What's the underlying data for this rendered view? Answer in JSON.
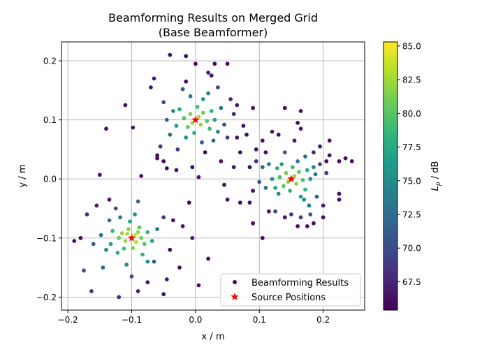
{
  "chart_data": {
    "type": "scatter",
    "title": "Beamforming Results on Merged Grid\n(Base Beamformer)",
    "xlabel": "x / m",
    "ylabel": "y / m",
    "xlim": [
      -0.21,
      0.265
    ],
    "ylim": [
      -0.222,
      0.232
    ],
    "xticks": [
      -0.2,
      -0.1,
      0.0,
      0.1,
      0.2
    ],
    "xtick_labels": [
      "−0.2",
      "−0.1",
      "0.0",
      "0.1",
      "0.2"
    ],
    "yticks": [
      -0.2,
      -0.1,
      0.0,
      0.1,
      0.2
    ],
    "ytick_labels": [
      "−0.2",
      "−0.1",
      "0.0",
      "0.1",
      "0.2"
    ],
    "grid": true,
    "legend": {
      "placement": "lower right",
      "entries": [
        "Beamforming Results",
        "Source Positions"
      ]
    },
    "colorbar": {
      "label": "L_p / dB",
      "label_main": "L",
      "label_sub": "p",
      "label_suffix": " / dB",
      "min": 65.4,
      "max": 85.3,
      "colormap": "viridis",
      "ticks": [
        67.5,
        70.0,
        72.5,
        75.0,
        77.5,
        80.0,
        82.5,
        85.0
      ],
      "tick_labels": [
        "67.5",
        "70.0",
        "72.5",
        "75.0",
        "77.5",
        "80.0",
        "82.5",
        "85.0"
      ]
    },
    "sources": {
      "name": "Source Positions",
      "color": "#ff0000",
      "marker": "star",
      "x": [
        -0.1,
        0.0,
        0.15
      ],
      "y": [
        -0.1,
        0.1,
        0.0
      ]
    },
    "series": [
      {
        "name": "Beamforming Results",
        "marker": "circle",
        "points": [
          [
            -0.1,
            -0.1,
            84.5
          ],
          [
            -0.095,
            -0.095,
            83.5
          ],
          [
            -0.107,
            -0.093,
            83.0
          ],
          [
            -0.093,
            -0.107,
            83.2
          ],
          [
            -0.11,
            -0.105,
            82.5
          ],
          [
            -0.09,
            -0.09,
            82.0
          ],
          [
            -0.105,
            -0.085,
            81.5
          ],
          [
            -0.085,
            -0.1,
            81.0
          ],
          [
            -0.115,
            -0.092,
            81.8
          ],
          [
            -0.098,
            -0.117,
            81.5
          ],
          [
            -0.12,
            -0.1,
            80.5
          ],
          [
            -0.08,
            -0.11,
            80.0
          ],
          [
            -0.112,
            -0.118,
            79.5
          ],
          [
            -0.088,
            -0.082,
            80.2
          ],
          [
            -0.13,
            -0.088,
            79.0
          ],
          [
            -0.075,
            -0.09,
            78.5
          ],
          [
            -0.103,
            -0.072,
            78.0
          ],
          [
            -0.122,
            -0.125,
            77.8
          ],
          [
            -0.083,
            -0.128,
            78.2
          ],
          [
            -0.133,
            -0.11,
            77.2
          ],
          [
            -0.068,
            -0.105,
            77.0
          ],
          [
            -0.095,
            -0.06,
            75.5
          ],
          [
            -0.14,
            -0.12,
            75.2
          ],
          [
            -0.075,
            -0.14,
            76.0
          ],
          [
            -0.118,
            -0.065,
            74.2
          ],
          [
            -0.06,
            -0.085,
            73.5
          ],
          [
            -0.148,
            -0.095,
            73.0
          ],
          [
            -0.108,
            -0.145,
            74.5
          ],
          [
            -0.135,
            -0.07,
            72.8
          ],
          [
            -0.09,
            -0.038,
            71.5
          ],
          [
            -0.16,
            -0.11,
            71.0
          ],
          [
            -0.145,
            -0.15,
            72.0
          ],
          [
            -0.1,
            -0.165,
            70.0
          ],
          [
            -0.065,
            -0.14,
            70.5
          ],
          [
            -0.125,
            -0.05,
            69.5
          ],
          [
            -0.05,
            -0.065,
            69.0
          ],
          [
            -0.17,
            -0.06,
            68.0
          ],
          [
            -0.175,
            -0.155,
            69.8
          ],
          [
            -0.163,
            -0.19,
            68.5
          ],
          [
            -0.12,
            -0.2,
            67.8
          ],
          [
            -0.155,
            -0.045,
            67.0
          ],
          [
            -0.135,
            -0.035,
            66.5
          ],
          [
            -0.09,
            -0.19,
            67.2
          ],
          [
            -0.045,
            -0.17,
            66.8
          ],
          [
            -0.04,
            -0.12,
            66.0
          ],
          [
            -0.05,
            -0.195,
            66.2
          ],
          [
            -0.02,
            -0.08,
            66.5
          ],
          [
            -0.025,
            -0.15,
            66.0
          ],
          [
            -0.005,
            -0.1,
            67.0
          ],
          [
            0.005,
            -0.18,
            66.3
          ],
          [
            0.02,
            -0.135,
            66.0
          ],
          [
            -0.14,
            0.085,
            66.2
          ],
          [
            -0.11,
            0.125,
            66.0
          ],
          [
            -0.098,
            0.087,
            66.4
          ],
          [
            -0.06,
            0.035,
            66.1
          ],
          [
            -0.085,
            0.005,
            66.3
          ],
          [
            -0.045,
            0.018,
            65.9
          ],
          [
            -0.19,
            -0.105,
            66.5
          ],
          [
            -0.18,
            -0.1,
            66.2
          ],
          [
            -0.15,
            0.007,
            66.7
          ],
          [
            -0.035,
            -0.07,
            66.4
          ],
          [
            -0.01,
            -0.04,
            66.1
          ],
          [
            -0.075,
            -0.175,
            66.6
          ],
          [
            0.0,
            0.1,
            84.0
          ],
          [
            0.005,
            0.105,
            83.0
          ],
          [
            -0.005,
            0.095,
            82.7
          ],
          [
            0.008,
            0.092,
            82.0
          ],
          [
            -0.008,
            0.11,
            81.5
          ],
          [
            0.012,
            0.112,
            80.8
          ],
          [
            -0.012,
            0.088,
            80.5
          ],
          [
            0.018,
            0.098,
            80.0
          ],
          [
            -0.018,
            0.103,
            79.6
          ],
          [
            0.003,
            0.122,
            79.0
          ],
          [
            0.022,
            0.085,
            78.8
          ],
          [
            -0.002,
            0.078,
            78.3
          ],
          [
            0.025,
            0.115,
            78.0
          ],
          [
            -0.025,
            0.118,
            77.5
          ],
          [
            0.03,
            0.1,
            77.0
          ],
          [
            -0.03,
            0.09,
            76.8
          ],
          [
            0.012,
            0.135,
            76.2
          ],
          [
            -0.015,
            0.07,
            75.8
          ],
          [
            0.035,
            0.08,
            75.0
          ],
          [
            -0.035,
            0.115,
            74.5
          ],
          [
            0.02,
            0.145,
            74.0
          ],
          [
            -0.008,
            0.14,
            73.5
          ],
          [
            0.04,
            0.12,
            73.0
          ],
          [
            -0.04,
            0.075,
            72.6
          ],
          [
            0.028,
            0.065,
            72.0
          ],
          [
            -0.045,
            0.1,
            71.5
          ],
          [
            0.01,
            0.062,
            71.2
          ],
          [
            -0.02,
            0.152,
            71.0
          ],
          [
            0.045,
            0.092,
            70.5
          ],
          [
            -0.05,
            0.13,
            70.0
          ],
          [
            0.035,
            0.155,
            69.5
          ],
          [
            -0.028,
            0.05,
            69.2
          ],
          [
            0.05,
            0.07,
            68.8
          ],
          [
            -0.055,
            0.055,
            68.5
          ],
          [
            0.06,
            0.11,
            68.0
          ],
          [
            0.055,
            0.135,
            67.5
          ],
          [
            -0.065,
            0.17,
            67.0
          ],
          [
            0.02,
            0.18,
            66.8
          ],
          [
            -0.04,
            0.21,
            66.3
          ],
          [
            -0.015,
            0.208,
            66.0
          ],
          [
            0.025,
            0.175,
            66.5
          ],
          [
            -0.06,
            0.04,
            66.2
          ],
          [
            0.05,
            0.195,
            66.1
          ],
          [
            0.065,
            0.125,
            66.7
          ],
          [
            0.075,
            0.09,
            66.3
          ],
          [
            0.08,
            0.075,
            66.0
          ],
          [
            0.07,
            0.045,
            66.4
          ],
          [
            0.095,
            0.05,
            66.1
          ],
          [
            0.06,
            0.02,
            66.6
          ],
          [
            0.04,
            0.03,
            66.2
          ],
          [
            0.015,
            0.045,
            66.0
          ],
          [
            -0.005,
            0.02,
            65.9
          ],
          [
            -0.03,
            0.015,
            66.3
          ],
          [
            -0.05,
            0.03,
            66.1
          ],
          [
            0.005,
            0.003,
            66.5
          ],
          [
            0.045,
            -0.01,
            66.2
          ],
          [
            0.085,
            0.02,
            66.0
          ],
          [
            -0.07,
            0.155,
            66.4
          ],
          [
            -0.015,
            0.165,
            66.2
          ],
          [
            0.0,
            0.195,
            66.0
          ],
          [
            0.09,
            0.12,
            66.3
          ],
          [
            0.065,
            0.07,
            66.5
          ],
          [
            0.03,
            0.195,
            66.1
          ],
          [
            0.15,
            0.0,
            83.5
          ],
          [
            0.155,
            0.005,
            82.5
          ],
          [
            0.145,
            -0.005,
            82.0
          ],
          [
            0.158,
            -0.008,
            81.5
          ],
          [
            0.142,
            0.01,
            81.2
          ],
          [
            0.162,
            0.012,
            80.5
          ],
          [
            0.138,
            -0.012,
            80.2
          ],
          [
            0.168,
            -0.002,
            79.8
          ],
          [
            0.132,
            0.003,
            79.5
          ],
          [
            0.152,
            0.02,
            79.0
          ],
          [
            0.148,
            -0.02,
            78.8
          ],
          [
            0.172,
            -0.018,
            78.3
          ],
          [
            0.128,
            0.018,
            78.0
          ],
          [
            0.175,
            0.015,
            77.6
          ],
          [
            0.125,
            -0.015,
            77.2
          ],
          [
            0.165,
            -0.03,
            76.8
          ],
          [
            0.135,
            0.025,
            76.5
          ],
          [
            0.18,
            0.0,
            76.0
          ],
          [
            0.12,
            0.0,
            75.8
          ],
          [
            0.17,
            -0.035,
            75.3
          ],
          [
            0.13,
            -0.025,
            75.0
          ],
          [
            0.185,
            0.02,
            74.6
          ],
          [
            0.115,
            0.025,
            74.2
          ],
          [
            0.178,
            -0.045,
            74.0
          ],
          [
            0.16,
            0.03,
            73.6
          ],
          [
            0.188,
            0.008,
            73.2
          ],
          [
            0.11,
            -0.015,
            72.8
          ],
          [
            0.172,
            0.038,
            72.5
          ],
          [
            0.105,
            0.02,
            72.0
          ],
          [
            0.19,
            -0.03,
            71.6
          ],
          [
            0.14,
            0.045,
            71.2
          ],
          [
            0.18,
            -0.06,
            70.8
          ],
          [
            0.1,
            -0.005,
            70.5
          ],
          [
            0.195,
            0.025,
            70.0
          ],
          [
            0.125,
            -0.055,
            69.6
          ],
          [
            0.165,
            -0.065,
            69.2
          ],
          [
            0.15,
            -0.06,
            68.8
          ],
          [
            0.205,
            0.01,
            68.4
          ],
          [
            0.095,
            0.03,
            68.0
          ],
          [
            0.185,
            0.045,
            67.6
          ],
          [
            0.2,
            -0.045,
            67.2
          ],
          [
            0.155,
            0.065,
            67.0
          ],
          [
            0.12,
            0.08,
            66.8
          ],
          [
            0.165,
            0.085,
            66.5
          ],
          [
            0.21,
            0.04,
            66.2
          ],
          [
            0.225,
            0.03,
            66.0
          ],
          [
            0.235,
            0.035,
            66.3
          ],
          [
            0.245,
            0.03,
            66.1
          ],
          [
            0.225,
            -0.025,
            66.4
          ],
          [
            0.225,
            -0.035,
            66.2
          ],
          [
            0.21,
            0.065,
            66.0
          ],
          [
            0.175,
            -0.08,
            66.3
          ],
          [
            0.16,
            -0.08,
            66.1
          ],
          [
            0.14,
            -0.065,
            66.5
          ],
          [
            0.115,
            -0.055,
            66.2
          ],
          [
            0.09,
            -0.02,
            66.0
          ],
          [
            0.085,
            -0.04,
            66.4
          ],
          [
            0.07,
            -0.04,
            66.1
          ],
          [
            0.05,
            -0.035,
            66.3
          ],
          [
            0.09,
            -0.075,
            66.0
          ],
          [
            0.195,
            0.055,
            66.6
          ],
          [
            0.2,
            -0.065,
            66.2
          ],
          [
            0.185,
            -0.075,
            66.0
          ],
          [
            0.105,
            0.065,
            66.4
          ],
          [
            0.205,
            0.03,
            66.1
          ],
          [
            0.11,
            0.045,
            66.3
          ],
          [
            0.13,
            0.075,
            66.0
          ],
          [
            0.16,
            0.095,
            66.2
          ],
          [
            0.14,
            0.12,
            66.1
          ],
          [
            0.165,
            0.115,
            66.4
          ],
          [
            0.105,
            -0.1,
            66.0
          ]
        ]
      }
    ]
  }
}
